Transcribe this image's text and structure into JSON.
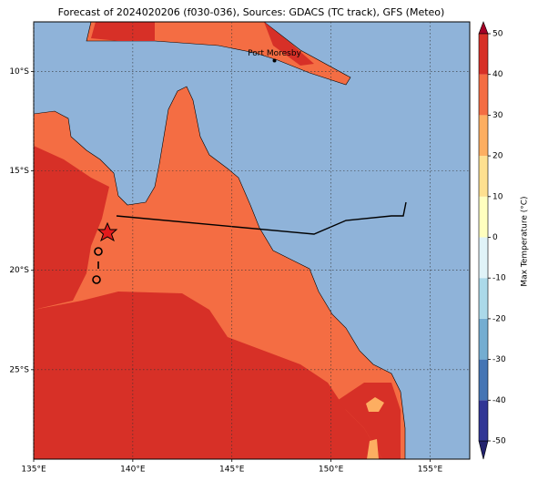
{
  "title": "Forecast of 2024020206 (f030-036), Sources: GDACS (TC track), GFS (Meteo)",
  "map": {
    "xlim": [
      135,
      157
    ],
    "ylim": [
      -29.5,
      -7.5
    ],
    "xticks": [
      {
        "value": 135,
        "label": "135°E"
      },
      {
        "value": 140,
        "label": "140°E"
      },
      {
        "value": 145,
        "label": "145°E"
      },
      {
        "value": 150,
        "label": "150°E"
      },
      {
        "value": 155,
        "label": "155°E"
      }
    ],
    "yticks": [
      {
        "value": -10,
        "label": "10°S"
      },
      {
        "value": -15,
        "label": "15°S"
      },
      {
        "value": -20,
        "label": "20°S"
      },
      {
        "value": -25,
        "label": "25°S"
      }
    ],
    "places": [
      {
        "name": "Port Moresby",
        "lon": 147.15,
        "lat": -9.45
      }
    ]
  },
  "colorbar": {
    "label": "Max Temperature (°C)",
    "lim": [
      -50,
      50
    ],
    "ticks": [
      -50,
      -40,
      -30,
      -20,
      -10,
      0,
      10,
      20,
      30,
      40,
      50
    ],
    "colors": [
      "#313695",
      "#4575b4",
      "#74add1",
      "#abd9e9",
      "#e0f3f8",
      "#ffffbf",
      "#fee090",
      "#fdae61",
      "#f46d43",
      "#d73027"
    ]
  }
}
